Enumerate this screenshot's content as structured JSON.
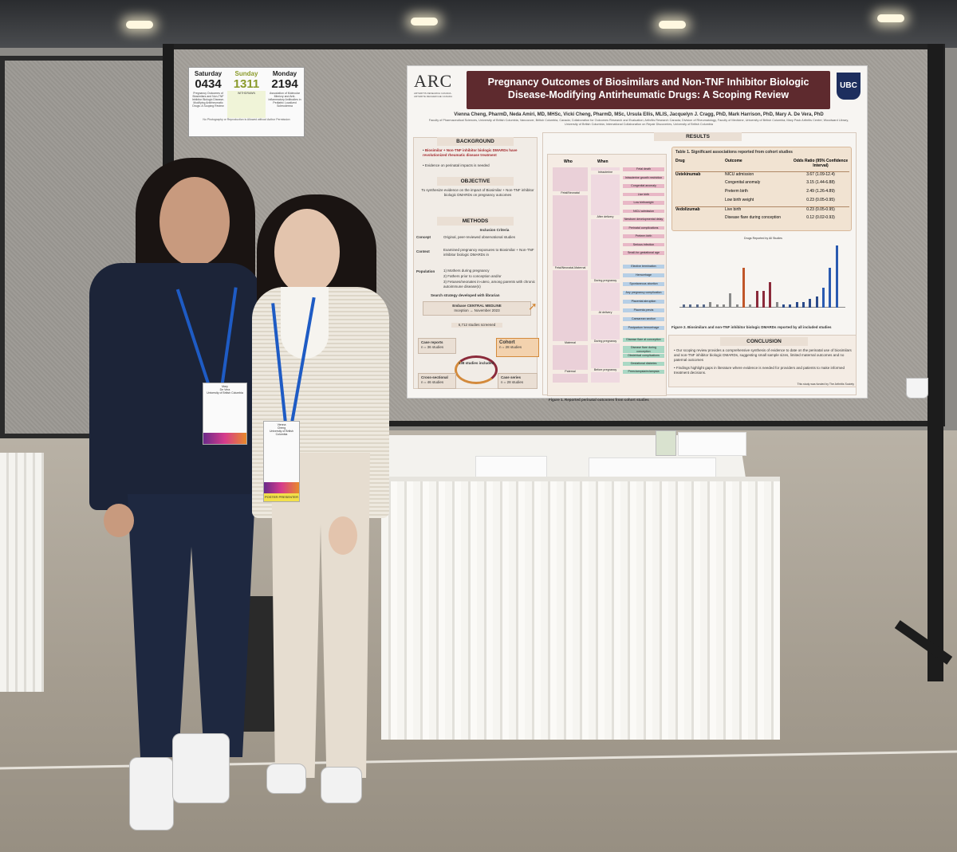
{
  "sign": {
    "days": [
      "Saturday",
      "Sunday",
      "Monday"
    ],
    "codes": [
      "0434",
      "1311",
      "2194"
    ],
    "notes": [
      "Pregnancy Outcomes of Biosimilars and Non-TNF Inhibitor Biologic Disease-Modifying Antirheumatic Drugs: A Scoping Review",
      "WITHDRAWN",
      "Association of Molecular Mimicry and Anti-Inflammatory Antibodies in Pediatric Localized Scleroderma"
    ],
    "footer": "No Photography or Reproduction is Allowed without Author Permission",
    "colors": {
      "highlight": "#8a9a2a"
    }
  },
  "poster": {
    "logo": {
      "name": "ARC",
      "subtitle": "ARTHRITIS RESEARCH CANADA · ARTHRITE RECHERCHE CANADA"
    },
    "title": "Pregnancy Outcomes of Biosimilars and Non-TNF Inhibitor Biologic Disease-Modifying Antirheumatic Drugs: A Scoping Review",
    "university": "UBC",
    "authors": "Vienna Cheng, PharmD, Neda Amiri, MD, MHSc, Vicki Cheng, PharmD, MSc, Ursula Ellis, MLIS, Jacquelyn J. Cragg, PhD, Mark Harrison, PhD, Mary A. De Vera, PhD",
    "affiliations": "Faculty of Pharmaceutical Sciences, University of British Columbia, Vancouver, British Columbia, Canada; Collaboration for Outcomes Research and Evaluation; Arthritis Research Canada; Division of Rheumatology, Faculty of Medicine, University of British Columbia; Mary Pack Arthritis Centre; Woodward Library, University of British Columbia; International Collaboration on Repair Discoveries, University of British Columbia",
    "background": {
      "heading": "BACKGROUND",
      "bullets": [
        "Biosimilar + Non-TNF inhibitor biologic DMARDs have revolutionized rheumatic disease treatment",
        "Evidence on perinatal impacts is needed"
      ]
    },
    "objective": {
      "heading": "OBJECTIVE",
      "text": "To synthesize evidence on the impact of Biosimilar + Non-TNF inhibitor biologic DMARDs on pregnancy outcomes"
    },
    "methods": {
      "heading": "METHODS",
      "subheading": "Inclusion Criteria",
      "concept_label": "Concept",
      "concept": "Original, peer-reviewed observational studies",
      "context_label": "Context",
      "context": "Examined pregnancy exposures to Biosimilar + Non-TNF inhibitor biologic DMARDs in",
      "population_label": "Population",
      "population": [
        "1) Mothers during pregnancy",
        "2) Fathers prior to conception and/or",
        "3) Fetuses/neonates in-utero, among parents with chronic autoimmune disease(s)"
      ],
      "search": "Search strategy developed with librarian",
      "databases": "Embase   CENTRAL   MEDLINE",
      "inception": "Inception → November 2023",
      "screened": "6,712 studies screened",
      "included": "138 studies included",
      "case_reports": "Case reports",
      "case_reports_n": "n = 36 studies",
      "cross_sectional": "Cross-sectional",
      "cross_sectional_n": "n = 46 studies",
      "cohort": "Cohort",
      "cohort_n": "n = 28 studies",
      "case_series": "Case series",
      "case_series_n": "n = 28 studies"
    },
    "results": {
      "heading": "RESULTS",
      "flow_headers": [
        "Who",
        "When"
      ],
      "who": [
        "Fetal/Neonatal",
        "Fetal/Neonatal-Maternal",
        "Maternal",
        "Paternal"
      ],
      "when": [
        "Intrauterine",
        "After delivery",
        "During pregnancy",
        "At delivery",
        "During pregnancy",
        "Before pregnancy"
      ],
      "outcomes_pink": [
        "Fetal death",
        "Intrauterine growth restriction",
        "Congenital anomaly",
        "Live birth",
        "Low birthweight",
        "NICU admission",
        "Newborn developmental delay",
        "Perinatal complications",
        "Preterm birth",
        "Serious infection",
        "Small-for-gestational age"
      ],
      "outcomes_blue": [
        "Elective termination",
        "Hemorrhage",
        "Spontaneous abortion",
        "Any pregnancy complication",
        "Placental abruption",
        "Placenta previa",
        "Caesarean section",
        "Postpartum hemorrhage"
      ],
      "outcomes_green": [
        "Disease flare at conception",
        "Disease flare during conception",
        "Obstetrical complications",
        "Gestational diabetes",
        "Preeclampsia/eclampsia"
      ],
      "figure1_caption": "Figure 1. Reported perinatal outcomes from cohort studies",
      "table": {
        "caption": "Table 1. Significant associations reported from cohort studies",
        "headers": [
          "Drug",
          "Outcome",
          "Odds Ratio (95% Confidence Interval)"
        ],
        "rows": [
          [
            "Ustekinumab",
            "NICU admission",
            "3.67 (1.09-12.4)"
          ],
          [
            "",
            "Congenital anomaly",
            "3.15 (1.44-6.88)"
          ],
          [
            "",
            "Preterm birth",
            "2.49 (1.26-4.89)"
          ],
          [
            "",
            "Low birth weight",
            "0.23 (0.05-0.95)"
          ],
          [
            "Vedolizumab",
            "Live birth",
            "0.23 (0.05-0.95)"
          ],
          [
            "",
            "Disease flare during conception",
            "0.12 (0.02-0.93)"
          ]
        ]
      },
      "figure2_caption": "Figure 2. Biosimilars and non-TNF inhibitor biologic DMARDs reported by all included studies",
      "figure2_title": "Drugs Reported by All Studies"
    },
    "conclusion": {
      "heading": "CONCLUSION",
      "bullets": [
        "Our scoping review provides a comprehensive synthesis of evidence to date on the perinatal use of biosimilars and non-TNF inhibitor biologic DMARDs, suggesting small sample sizes, limited maternal outcomes and no paternal outcomes",
        "Findings highlight gaps in literature where evidence is needed for providers and patients to make informed treatment decisions."
      ],
      "funding": "This study was funded by The Arthritis Society"
    },
    "colors": {
      "title_bg": "#5e2a2e",
      "accent": "#a3282c",
      "orange": "#d38a3c"
    }
  },
  "chart_data": {
    "type": "bar",
    "title": "Drugs Reported by All Studies",
    "values": [
      1,
      1,
      1,
      1,
      2,
      1,
      1,
      5,
      1,
      14,
      1,
      6,
      6,
      9,
      2,
      1,
      1,
      2,
      2,
      3,
      4,
      7,
      14,
      22
    ],
    "colors": [
      "#5a6a8a",
      "#5a6a8a",
      "#5a6a8a",
      "#5a6a8a",
      "#8a8a8a",
      "#8a8a8a",
      "#8a8a8a",
      "#8a8a8a",
      "#8a8a8a",
      "#c0562a",
      "#8a8a8a",
      "#8b2a3a",
      "#8b2a3a",
      "#8b2a3a",
      "#8a8a8a",
      "#2a4a8a",
      "#2a4a8a",
      "#2a4a8a",
      "#2a4a8a",
      "#2a4a8a",
      "#2a4a8a",
      "#2a5ab0",
      "#2a5ab0",
      "#2a5ab0"
    ]
  },
  "badges": {
    "left": {
      "line1": "Mary",
      "line2": "De Vera",
      "line3": "University of British Columbia"
    },
    "right": {
      "line1": "Vienna",
      "line2": "Cheng",
      "line3": "University of British Columbia",
      "role": "POSTER PRESENTER"
    }
  },
  "colors": {
    "lanyard": "#1e5bc4",
    "blazer": "#1c2438"
  }
}
